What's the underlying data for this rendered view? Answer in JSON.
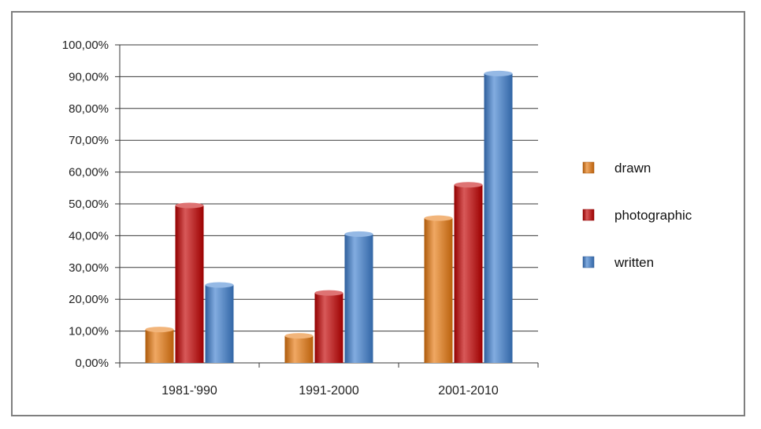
{
  "chart_data": {
    "type": "bar",
    "title": "",
    "xlabel": "",
    "ylabel": "",
    "categories": [
      "1981-'990",
      "1991-2000",
      "2001-2010"
    ],
    "series": [
      {
        "name": "drawn",
        "values": [
          10.5,
          8.5,
          45.5
        ],
        "color": "#e8790f"
      },
      {
        "name": "photographic",
        "values": [
          49.5,
          22.0,
          56.0
        ],
        "color": "#c30000"
      },
      {
        "name": "written",
        "values": [
          24.5,
          40.5,
          91.0
        ],
        "color": "#3f7fd0"
      }
    ],
    "ylim": [
      0,
      100
    ],
    "y_ticks": [
      "0,00%",
      "10,00%",
      "20,00%",
      "30,00%",
      "40,00%",
      "50,00%",
      "60,00%",
      "70,00%",
      "80,00%",
      "90,00%",
      "100,00%"
    ],
    "grid": true,
    "legend": "right",
    "style": "3d-cylinder"
  }
}
